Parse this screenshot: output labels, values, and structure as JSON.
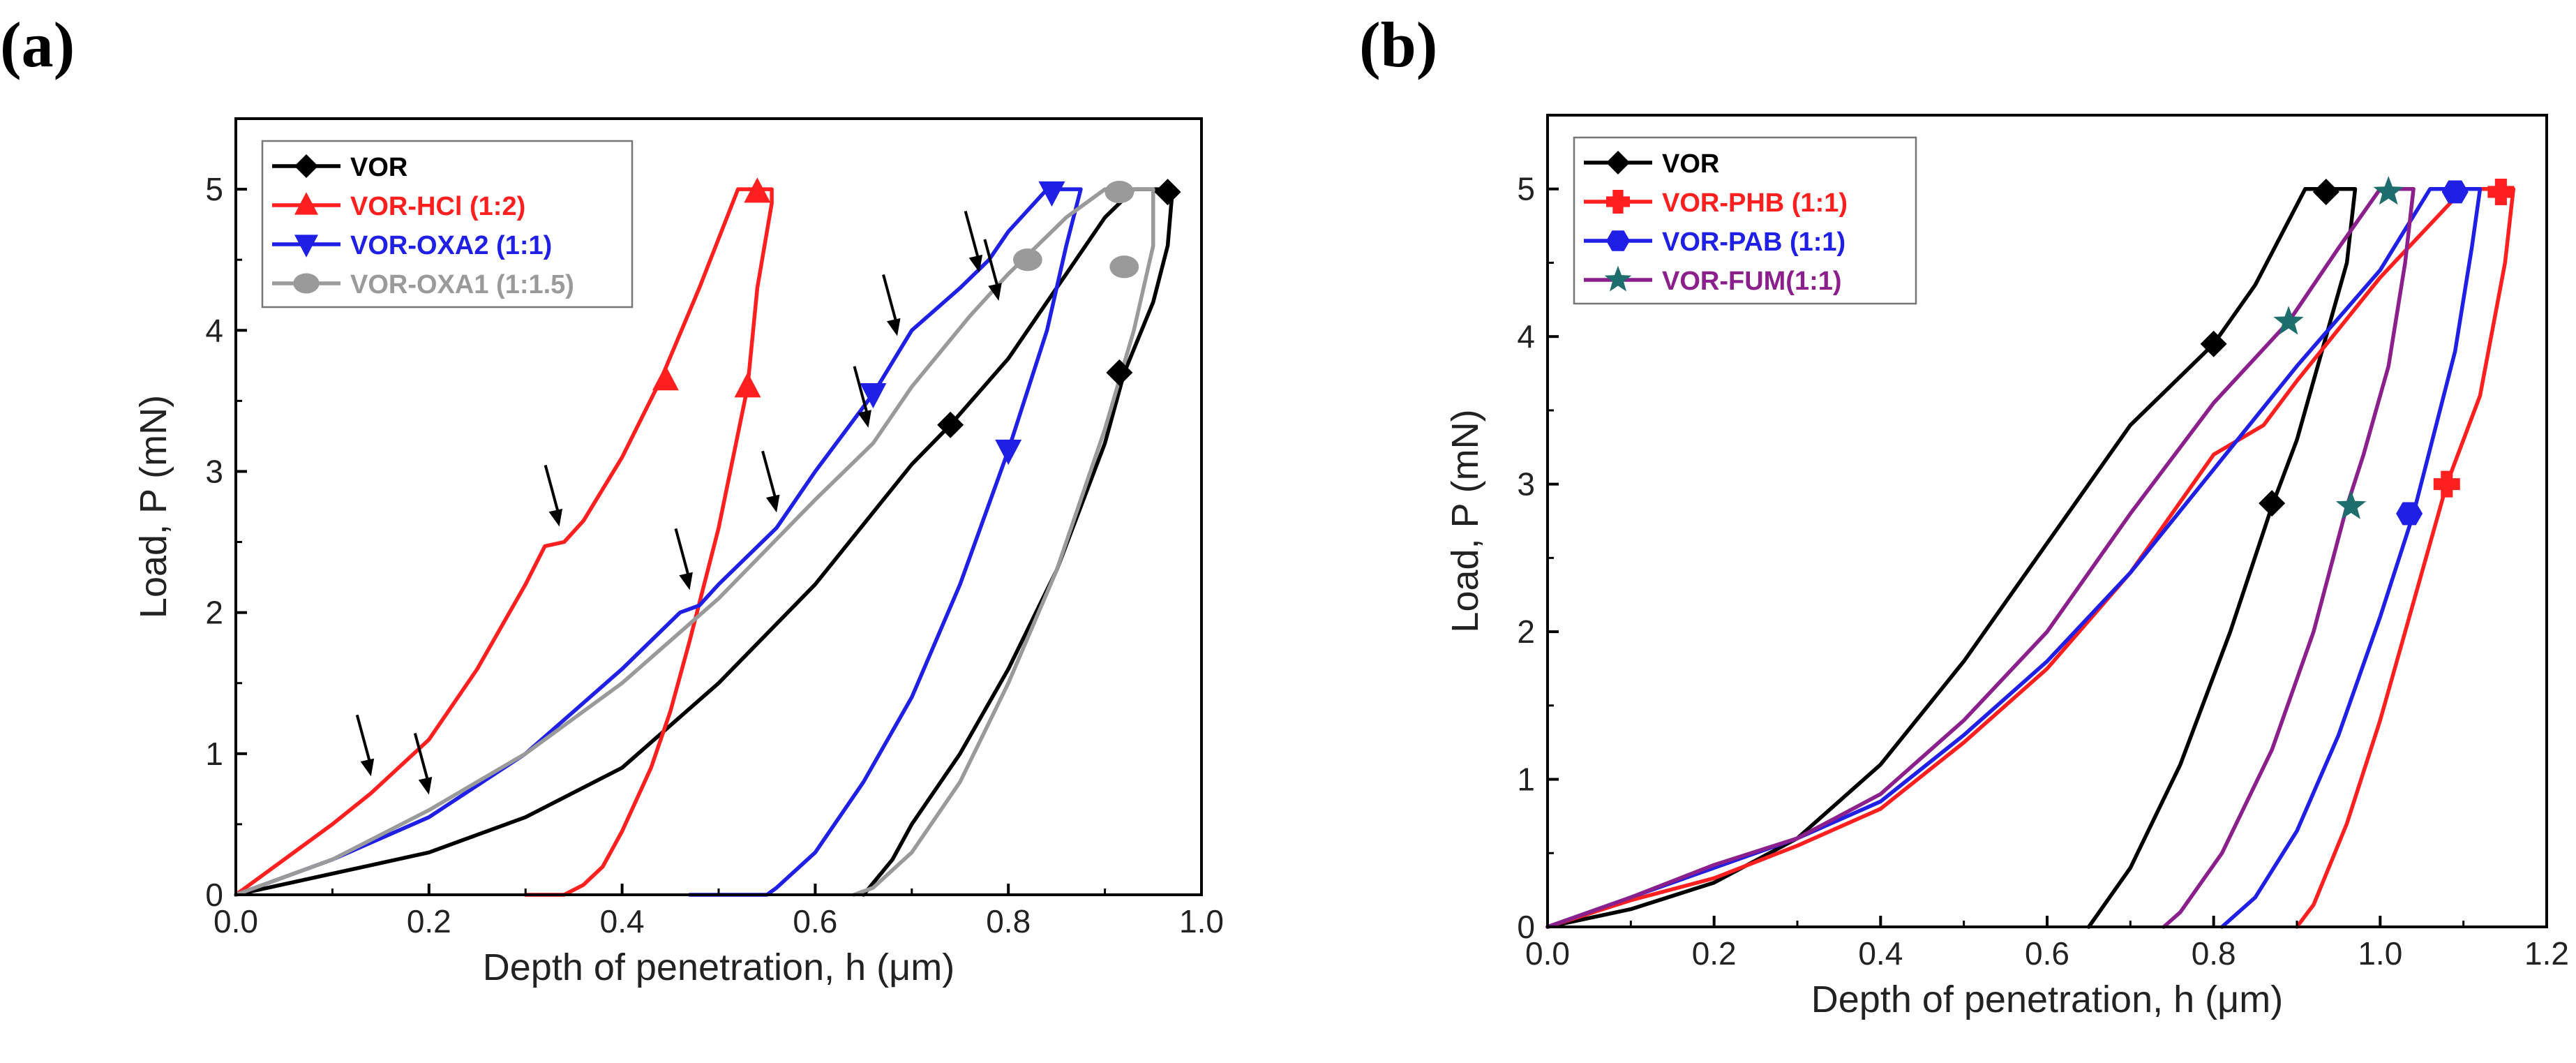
{
  "colors": {
    "black": "#000000",
    "red": "#ff1f1f",
    "blue": "#1f1fe6",
    "gray": "#9a9a9a",
    "purple": "#8b1f8b",
    "teal": "#1e6e6e"
  },
  "chart_data": [
    {
      "panel_label": "(a)",
      "type": "line",
      "xlabel": "Depth of penetration, h (μm)",
      "ylabel": "Load, P (mN)",
      "xlim": [
        0.0,
        1.0
      ],
      "ylim": [
        0,
        5.5
      ],
      "xticks": [
        "0.0",
        "0.2",
        "0.4",
        "0.6",
        "0.8",
        "1.0"
      ],
      "yticks": [
        "0",
        "1",
        "2",
        "3",
        "4",
        "5"
      ],
      "legend_position": "top-left",
      "series": [
        {
          "name": "VOR",
          "color": "#000000",
          "marker": "diamond",
          "x": [
            0.0,
            0.1,
            0.2,
            0.3,
            0.4,
            0.5,
            0.6,
            0.7,
            0.74,
            0.8,
            0.85,
            0.9,
            0.93,
            0.97,
            0.965,
            0.95,
            0.92,
            0.9,
            0.85,
            0.8,
            0.75,
            0.7,
            0.68,
            0.65
          ],
          "y": [
            0.0,
            0.15,
            0.3,
            0.55,
            0.9,
            1.5,
            2.2,
            3.05,
            3.33,
            3.8,
            4.3,
            4.8,
            5.0,
            5.0,
            4.6,
            4.2,
            3.7,
            3.2,
            2.3,
            1.6,
            1.0,
            0.5,
            0.25,
            0.0
          ],
          "marker_x": [
            0.74,
            0.965,
            0.915
          ],
          "marker_y": [
            3.33,
            4.98,
            3.7
          ]
        },
        {
          "name": "VOR-HCl (1:2)",
          "color": "#ff1f1f",
          "marker": "triangle-up",
          "x": [
            0.0,
            0.05,
            0.1,
            0.14,
            0.2,
            0.25,
            0.3,
            0.32,
            0.34,
            0.36,
            0.4,
            0.44,
            0.48,
            0.52,
            0.53,
            0.555,
            0.555,
            0.54,
            0.53,
            0.5,
            0.47,
            0.45,
            0.43,
            0.4,
            0.38,
            0.36,
            0.34,
            0.3
          ],
          "y": [
            0.0,
            0.25,
            0.5,
            0.72,
            1.1,
            1.6,
            2.2,
            2.47,
            2.5,
            2.65,
            3.1,
            3.65,
            4.3,
            5.0,
            5.0,
            5.0,
            4.9,
            4.3,
            3.6,
            2.6,
            1.8,
            1.3,
            0.9,
            0.45,
            0.2,
            0.07,
            0.0,
            0.0
          ],
          "marker_x": [
            0.445,
            0.54,
            0.53
          ],
          "marker_y": [
            3.65,
            4.98,
            3.6
          ]
        },
        {
          "name": "VOR-OXA2 (1:1)",
          "color": "#1f1fe6",
          "marker": "triangle-down",
          "x": [
            0.0,
            0.1,
            0.2,
            0.3,
            0.4,
            0.46,
            0.48,
            0.5,
            0.56,
            0.6,
            0.66,
            0.7,
            0.75,
            0.78,
            0.8,
            0.84,
            0.875,
            0.86,
            0.84,
            0.8,
            0.75,
            0.7,
            0.65,
            0.6,
            0.56,
            0.55,
            0.5,
            0.47
          ],
          "y": [
            0.0,
            0.25,
            0.55,
            1.0,
            1.6,
            2.0,
            2.05,
            2.2,
            2.6,
            3.0,
            3.55,
            4.0,
            4.3,
            4.5,
            4.7,
            5.0,
            5.0,
            4.6,
            4.0,
            3.15,
            2.2,
            1.4,
            0.8,
            0.3,
            0.05,
            0.0,
            0.0,
            0.0
          ],
          "marker_x": [
            0.66,
            0.845,
            0.8
          ],
          "marker_y": [
            3.55,
            4.98,
            3.15
          ]
        },
        {
          "name": "VOR-OXA1 (1:1.5)",
          "color": "#9a9a9a",
          "marker": "circle",
          "x": [
            0.0,
            0.1,
            0.2,
            0.3,
            0.4,
            0.5,
            0.6,
            0.66,
            0.7,
            0.76,
            0.8,
            0.86,
            0.9,
            0.95,
            0.95,
            0.93,
            0.9,
            0.85,
            0.8,
            0.75,
            0.7,
            0.66,
            0.64
          ],
          "y": [
            0.0,
            0.25,
            0.6,
            1.0,
            1.5,
            2.1,
            2.8,
            3.2,
            3.6,
            4.1,
            4.4,
            4.8,
            5.0,
            5.0,
            4.6,
            4.0,
            3.3,
            2.3,
            1.5,
            0.8,
            0.3,
            0.05,
            0.0
          ],
          "marker_x": [
            0.82,
            0.915,
            0.92
          ],
          "marker_y": [
            4.5,
            4.98,
            4.45
          ]
        }
      ],
      "arrows": [
        {
          "x": 0.14,
          "y": 0.78
        },
        {
          "x": 0.2,
          "y": 0.65
        },
        {
          "x": 0.335,
          "y": 2.55
        },
        {
          "x": 0.47,
          "y": 2.1
        },
        {
          "x": 0.56,
          "y": 2.65
        },
        {
          "x": 0.655,
          "y": 3.25
        },
        {
          "x": 0.685,
          "y": 3.9
        },
        {
          "x": 0.77,
          "y": 4.35
        },
        {
          "x": 0.79,
          "y": 4.15
        }
      ]
    },
    {
      "panel_label": "(b)",
      "type": "line",
      "xlabel": "Depth of penetration, h (μm)",
      "ylabel": "Load, P (mN)",
      "xlim": [
        0.0,
        1.2
      ],
      "ylim": [
        0,
        5.5
      ],
      "xticks": [
        "0.0",
        "0.2",
        "0.4",
        "0.6",
        "0.8",
        "1.0",
        "1.2"
      ],
      "yticks": [
        "0",
        "1",
        "2",
        "3",
        "4",
        "5"
      ],
      "legend_position": "top-left",
      "series": [
        {
          "name": "VOR",
          "color": "#000000",
          "marker": "diamond",
          "x": [
            0.0,
            0.1,
            0.2,
            0.3,
            0.4,
            0.5,
            0.6,
            0.7,
            0.8,
            0.85,
            0.91,
            0.97,
            0.96,
            0.93,
            0.9,
            0.87,
            0.82,
            0.76,
            0.7,
            0.65
          ],
          "y": [
            0.0,
            0.12,
            0.3,
            0.6,
            1.1,
            1.8,
            2.6,
            3.4,
            3.95,
            4.35,
            5.0,
            5.0,
            4.5,
            3.9,
            3.3,
            2.85,
            2.0,
            1.1,
            0.4,
            0.0
          ],
          "marker_x": [
            0.8,
            0.935,
            0.87
          ],
          "marker_y": [
            3.95,
            4.98,
            2.87
          ]
        },
        {
          "name": "VOR-PHB (1:1)",
          "color": "#ff1f1f",
          "marker": "plus",
          "x": [
            0.0,
            0.1,
            0.2,
            0.3,
            0.4,
            0.5,
            0.6,
            0.7,
            0.8,
            0.86,
            0.9,
            0.95,
            1.0,
            1.05,
            1.1,
            1.16,
            1.15,
            1.12,
            1.08,
            1.04,
            1.0,
            0.96,
            0.92,
            0.9
          ],
          "y": [
            0.0,
            0.18,
            0.33,
            0.55,
            0.8,
            1.25,
            1.75,
            2.4,
            3.2,
            3.4,
            3.7,
            4.05,
            4.4,
            4.7,
            5.0,
            5.0,
            4.5,
            3.6,
            3.0,
            2.2,
            1.4,
            0.7,
            0.15,
            0.0
          ],
          "marker_x": [
            1.08,
            1.145
          ],
          "marker_y": [
            3.0,
            4.98
          ]
        },
        {
          "name": "VOR-PAB (1:1)",
          "color": "#1f1fe6",
          "marker": "hexagon",
          "x": [
            0.0,
            0.1,
            0.2,
            0.3,
            0.4,
            0.5,
            0.6,
            0.7,
            0.8,
            0.9,
            1.0,
            1.06,
            1.12,
            1.11,
            1.09,
            1.04,
            1.0,
            0.95,
            0.9,
            0.85,
            0.81
          ],
          "y": [
            0.0,
            0.2,
            0.4,
            0.6,
            0.85,
            1.3,
            1.8,
            2.4,
            3.1,
            3.8,
            4.45,
            5.0,
            5.0,
            4.6,
            3.9,
            2.8,
            2.1,
            1.3,
            0.65,
            0.2,
            0.0
          ],
          "marker_x": [
            1.035,
            1.09
          ],
          "marker_y": [
            2.8,
            4.98
          ]
        },
        {
          "name": "VOR-FUM(1:1)",
          "color": "#8b1f8b",
          "marker_color": "#1e6e6e",
          "marker": "star",
          "x": [
            0.0,
            0.1,
            0.2,
            0.3,
            0.4,
            0.5,
            0.6,
            0.7,
            0.8,
            0.89,
            0.95,
            1.0,
            1.04,
            1.03,
            1.01,
            0.98,
            0.96,
            0.92,
            0.87,
            0.81,
            0.76,
            0.74
          ],
          "y": [
            0.0,
            0.2,
            0.42,
            0.6,
            0.9,
            1.4,
            2.0,
            2.8,
            3.55,
            4.1,
            4.6,
            5.0,
            5.0,
            4.5,
            3.8,
            3.2,
            2.85,
            2.0,
            1.2,
            0.5,
            0.1,
            0.0
          ],
          "marker_x": [
            0.89,
            1.01,
            0.965
          ],
          "marker_y": [
            4.1,
            4.98,
            2.85
          ]
        }
      ]
    }
  ]
}
